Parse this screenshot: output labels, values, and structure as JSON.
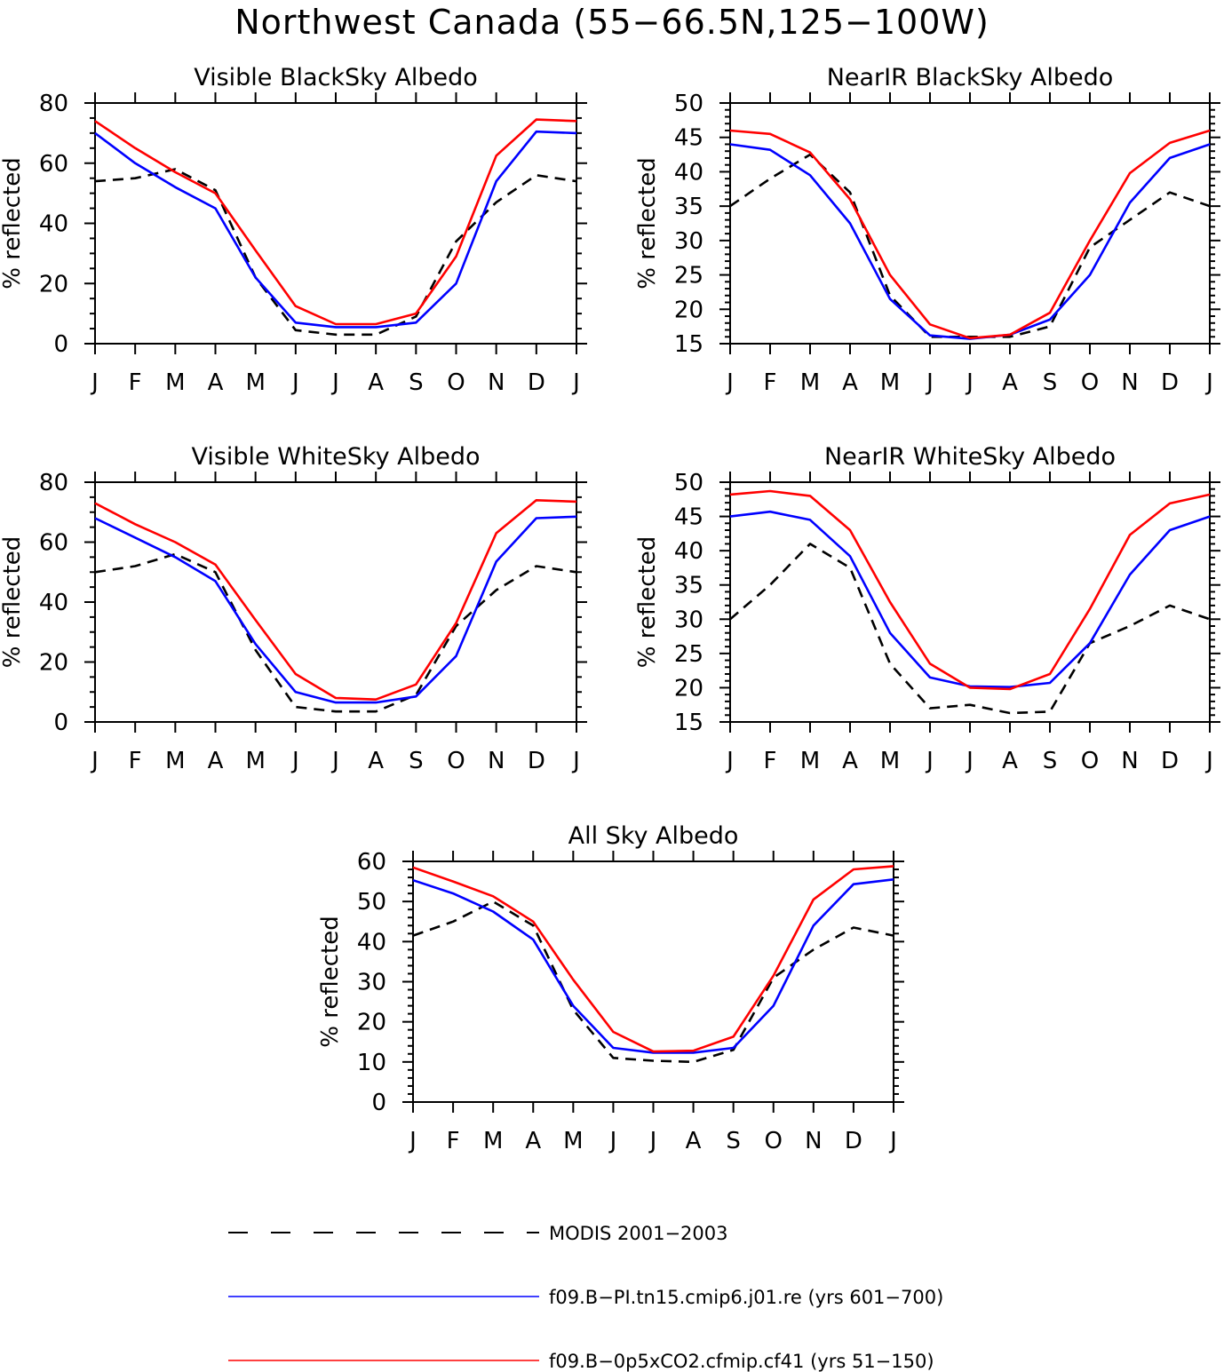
{
  "figure": {
    "title": "Northwest Canada (55−66.5N,125−100W)"
  },
  "legend": {
    "placement": "bottom",
    "items": [
      {
        "label": "MODIS 2001−2003",
        "color": "#000000",
        "dash": true
      },
      {
        "label": "f09.B−PI.tn15.cmip6.j01.re (yrs 601−700)",
        "color": "#0000ff",
        "dash": false
      },
      {
        "label": "f09.B−0p5xCO2.cfmip.cf41 (yrs 51−150)",
        "color": "#ff0000",
        "dash": false
      }
    ]
  },
  "chart_data": [
    {
      "type": "line",
      "title": "Visible BlackSky Albedo",
      "ylabel": "% reflected",
      "ylim": [
        0,
        80
      ],
      "yticks": [
        0,
        20,
        40,
        60,
        80
      ],
      "yminor": 5,
      "categories": [
        "J",
        "F",
        "M",
        "A",
        "M",
        "J",
        "J",
        "A",
        "S",
        "O",
        "N",
        "D",
        "J"
      ],
      "series": [
        {
          "name": "MODIS 2001−2003",
          "color": "#000000",
          "dash": true,
          "values": [
            54,
            55,
            58,
            51,
            22,
            4.5,
            3,
            3,
            9,
            34,
            47,
            56,
            54
          ]
        },
        {
          "name": "f09.B−PI.tn15.cmip6.j01.re (yrs 601−700)",
          "color": "#0000ff",
          "dash": false,
          "values": [
            70,
            60,
            52,
            45,
            22,
            7,
            5.5,
            5.5,
            7,
            20,
            54,
            70.5,
            70
          ]
        },
        {
          "name": "f09.B−0p5xCO2.cfmip.cf41 (yrs 51−150)",
          "color": "#ff0000",
          "dash": false,
          "values": [
            74,
            65,
            57,
            50,
            31,
            12.5,
            6.5,
            6.5,
            10,
            29,
            62.5,
            74.5,
            74
          ]
        }
      ]
    },
    {
      "type": "line",
      "title": "NearIR BlackSky Albedo",
      "ylabel": "% reflected",
      "ylim": [
        15,
        50
      ],
      "yticks": [
        15,
        20,
        25,
        30,
        35,
        40,
        45,
        50
      ],
      "yminor": 1,
      "categories": [
        "J",
        "F",
        "M",
        "A",
        "M",
        "J",
        "J",
        "A",
        "S",
        "O",
        "N",
        "D",
        "J"
      ],
      "series": [
        {
          "name": "MODIS 2001−2003",
          "color": "#000000",
          "dash": true,
          "values": [
            35,
            39,
            42.5,
            37,
            22,
            16,
            16,
            16,
            17.5,
            29,
            33,
            37,
            35
          ]
        },
        {
          "name": "f09.B−PI.tn15.cmip6.j01.re (yrs 601−700)",
          "color": "#0000ff",
          "dash": false,
          "values": [
            44,
            43.2,
            39.5,
            32.5,
            21.5,
            16.2,
            15.7,
            16.3,
            18.5,
            25,
            35.5,
            42,
            44
          ]
        },
        {
          "name": "f09.B−0p5xCO2.cfmip.cf41 (yrs 51−150)",
          "color": "#ff0000",
          "dash": false,
          "values": [
            46,
            45.5,
            42.8,
            36,
            25,
            17.8,
            15.8,
            16.3,
            19.5,
            30,
            39.8,
            44.2,
            46
          ]
        }
      ]
    },
    {
      "type": "line",
      "title": "Visible WhiteSky Albedo",
      "ylabel": "% reflected",
      "ylim": [
        0,
        80
      ],
      "yticks": [
        0,
        20,
        40,
        60,
        80
      ],
      "yminor": 5,
      "categories": [
        "J",
        "F",
        "M",
        "A",
        "M",
        "J",
        "J",
        "A",
        "S",
        "O",
        "N",
        "D",
        "J"
      ],
      "series": [
        {
          "name": "MODIS 2001−2003",
          "color": "#000000",
          "dash": true,
          "values": [
            50,
            52,
            56,
            50,
            24,
            5,
            3.5,
            3.5,
            9,
            32,
            44,
            52,
            50
          ]
        },
        {
          "name": "f09.B−PI.tn15.cmip6.j01.re (yrs 601−700)",
          "color": "#0000ff",
          "dash": false,
          "values": [
            68,
            61.5,
            55,
            47,
            26,
            10,
            6.5,
            6.5,
            8.5,
            22,
            53.5,
            68,
            68.5
          ]
        },
        {
          "name": "f09.B−0p5xCO2.cfmip.cf41 (yrs 51−150)",
          "color": "#ff0000",
          "dash": false,
          "values": [
            73,
            66,
            60,
            52.5,
            34,
            16,
            8,
            7.5,
            12.5,
            33,
            63,
            74,
            73.5
          ]
        }
      ]
    },
    {
      "type": "line",
      "title": "NearIR WhiteSky Albedo",
      "ylabel": "% reflected",
      "ylim": [
        15,
        50
      ],
      "yticks": [
        15,
        20,
        25,
        30,
        35,
        40,
        45,
        50
      ],
      "yminor": 1,
      "categories": [
        "J",
        "F",
        "M",
        "A",
        "M",
        "J",
        "J",
        "A",
        "S",
        "O",
        "N",
        "D",
        "J"
      ],
      "series": [
        {
          "name": "MODIS 2001−2003",
          "color": "#000000",
          "dash": true,
          "values": [
            30,
            35,
            41,
            37.5,
            23.5,
            17,
            17.5,
            16.3,
            16.5,
            26.5,
            29,
            32,
            30
          ]
        },
        {
          "name": "f09.B−PI.tn15.cmip6.j01.re (yrs 601−700)",
          "color": "#0000ff",
          "dash": false,
          "values": [
            45,
            45.7,
            44.5,
            39.2,
            28,
            21.5,
            20.2,
            20.1,
            20.7,
            26.5,
            36.5,
            43,
            45
          ]
        },
        {
          "name": "f09.B−0p5xCO2.cfmip.cf41 (yrs 51−150)",
          "color": "#ff0000",
          "dash": false,
          "values": [
            48.2,
            48.7,
            48,
            43,
            32.5,
            23.5,
            20,
            19.8,
            22,
            31.5,
            42.3,
            46.9,
            48.2
          ]
        }
      ]
    },
    {
      "type": "line",
      "title": "All Sky Albedo",
      "ylabel": "% reflected",
      "ylim": [
        0,
        60
      ],
      "yticks": [
        0,
        10,
        20,
        30,
        40,
        50,
        60
      ],
      "yminor": 2,
      "categories": [
        "J",
        "F",
        "M",
        "A",
        "M",
        "J",
        "J",
        "A",
        "S",
        "O",
        "N",
        "D",
        "J"
      ],
      "series": [
        {
          "name": "MODIS 2001−2003",
          "color": "#000000",
          "dash": true,
          "values": [
            41.5,
            45,
            50,
            44,
            23,
            11,
            10.3,
            10,
            13,
            31,
            38,
            43.5,
            41.5
          ]
        },
        {
          "name": "f09.B−PI.tn15.cmip6.j01.re (yrs 601−700)",
          "color": "#0000ff",
          "dash": false,
          "values": [
            55.3,
            52,
            47.5,
            40.5,
            24,
            13.5,
            12.3,
            12.3,
            13.5,
            24,
            44,
            54.3,
            55.5
          ]
        },
        {
          "name": "f09.B−0p5xCO2.cfmip.cf41 (yrs 51−150)",
          "color": "#ff0000",
          "dash": false,
          "values": [
            58.5,
            55,
            51.3,
            45,
            30.5,
            17.5,
            12.6,
            12.8,
            16.3,
            31.5,
            50.5,
            58,
            58.8
          ]
        }
      ]
    }
  ]
}
